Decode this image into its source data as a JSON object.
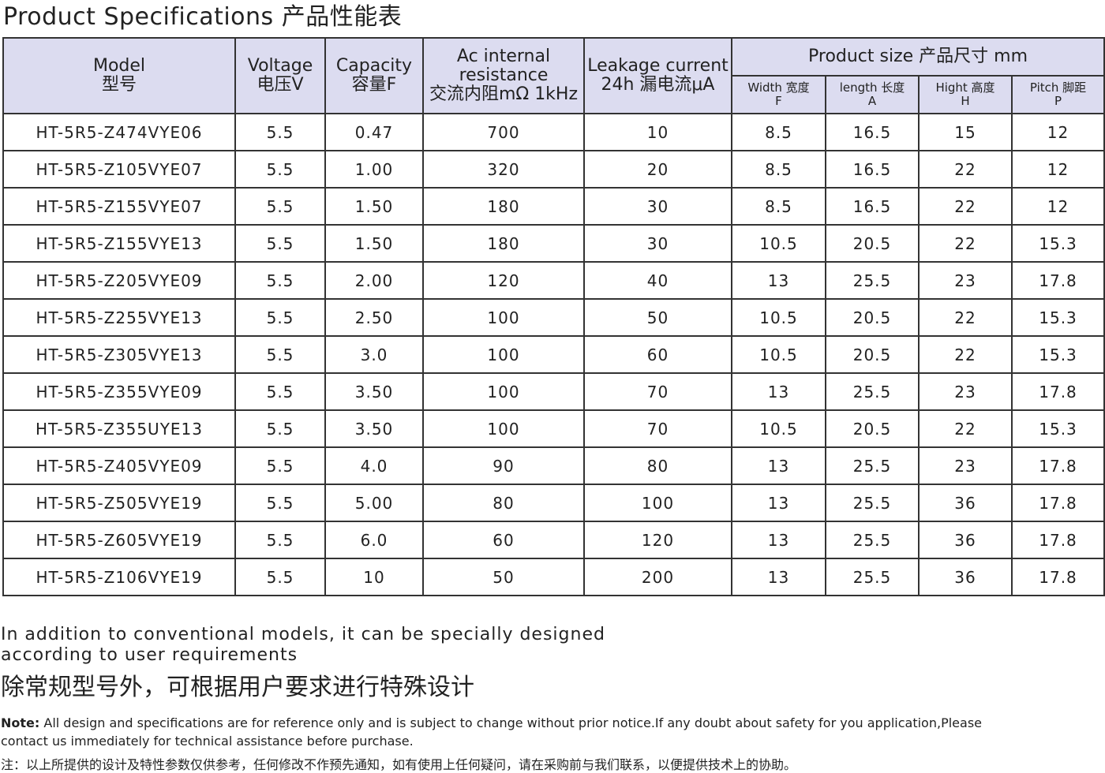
{
  "title": "Product Specifications 产品性能表",
  "table": {
    "headers": [
      [
        "Model",
        "型号"
      ],
      [
        "Voltage",
        "电压V"
      ],
      [
        "Capacity",
        "容量F"
      ],
      [
        "Ac internal",
        "resistance",
        "交流内阻mΩ 1kHz"
      ],
      [
        "Leakage current",
        "24h 漏电流μA"
      ]
    ],
    "group_header": "Product size 产品尺寸 mm",
    "sub_headers": [
      [
        "Width 宽度",
        "F"
      ],
      [
        "length 长度",
        "A"
      ],
      [
        "Hight 高度",
        "H"
      ],
      [
        "Pitch 脚距",
        "P"
      ]
    ],
    "rows": [
      [
        "HT-5R5-Z474VYE06",
        "5.5",
        "0.47",
        "700",
        "10",
        "8.5",
        "16.5",
        "15",
        "12"
      ],
      [
        "HT-5R5-Z105VYE07",
        "5.5",
        "1.00",
        "320",
        "20",
        "8.5",
        "16.5",
        "22",
        "12"
      ],
      [
        "HT-5R5-Z155VYE07",
        "5.5",
        "1.50",
        "180",
        "30",
        "8.5",
        "16.5",
        "22",
        "12"
      ],
      [
        "HT-5R5-Z155VYE13",
        "5.5",
        "1.50",
        "180",
        "30",
        "10.5",
        "20.5",
        "22",
        "15.3"
      ],
      [
        "HT-5R5-Z205VYE09",
        "5.5",
        "2.00",
        "120",
        "40",
        "13",
        "25.5",
        "23",
        "17.8"
      ],
      [
        "HT-5R5-Z255VYE13",
        "5.5",
        "2.50",
        "100",
        "50",
        "10.5",
        "20.5",
        "22",
        "15.3"
      ],
      [
        "HT-5R5-Z305VYE13",
        "5.5",
        "3.0",
        "100",
        "60",
        "10.5",
        "20.5",
        "22",
        "15.3"
      ],
      [
        "HT-5R5-Z355VYE09",
        "5.5",
        "3.50",
        "100",
        "70",
        "13",
        "25.5",
        "23",
        "17.8"
      ],
      [
        "HT-5R5-Z355UYE13",
        "5.5",
        "3.50",
        "100",
        "70",
        "10.5",
        "20.5",
        "22",
        "15.3"
      ],
      [
        "HT-5R5-Z405VYE09",
        "5.5",
        "4.0",
        "90",
        "80",
        "13",
        "25.5",
        "23",
        "17.8"
      ],
      [
        "HT-5R5-Z505VYE19",
        "5.5",
        "5.00",
        "80",
        "100",
        "13",
        "25.5",
        "36",
        "17.8"
      ],
      [
        "HT-5R5-Z605VYE19",
        "5.5",
        "6.0",
        "60",
        "120",
        "13",
        "25.5",
        "36",
        "17.8"
      ],
      [
        "HT-5R5-Z106VYE19",
        "5.5",
        "10",
        "50",
        "200",
        "13",
        "25.5",
        "36",
        "17.8"
      ]
    ]
  },
  "footer": {
    "notes": [
      "In addition to conventional models, it can be specially designed",
      "according to user requirements"
    ],
    "note_cn": "除常规型号外，可根据用户要求进行特殊设计",
    "disclaimer_label": "Note:",
    "disclaimer": " All design and specifications are for reference only and is subject to change without prior notice.If any doubt about safety for you application,Please",
    "disclaimer2": "contact us immediately  for technical assistance before purchase.",
    "disclaimer_cn": "注：以上所提供的设计及特性参数仅供参考，任何修改不作预先通知，如有使用上任何疑问，请在采购前与我们联系，以便提供技术上的协助。"
  }
}
